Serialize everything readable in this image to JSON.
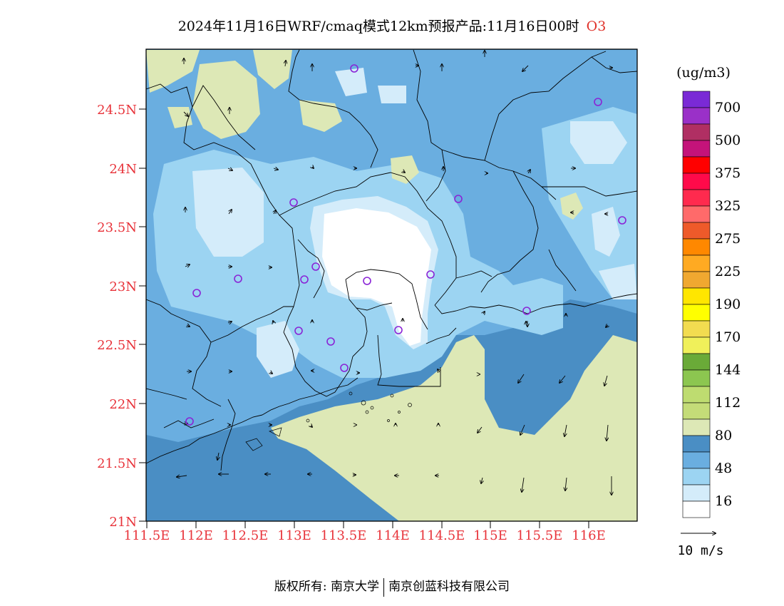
{
  "title": {
    "text": "2024年11月16日WRF/cmaq模式12km预报产品:11月16日00时",
    "species": "O3"
  },
  "axes": {
    "lat_ticks": [
      "24.5N",
      "24N",
      "23.5N",
      "23N",
      "22.5N",
      "22N",
      "21.5N",
      "21N"
    ],
    "lon_ticks": [
      "111.5E",
      "112E",
      "112.5E",
      "113E",
      "113.5E",
      "114E",
      "114.5E",
      "115E",
      "115.5E",
      "116E"
    ],
    "label_color": "#e8333a"
  },
  "legend": {
    "unit": "(ug/m3)",
    "levels": [
      {
        "label": "700",
        "color": "#7a2ad6"
      },
      {
        "label": "",
        "color": "#9a30c8"
      },
      {
        "label": "500",
        "color": "#b02f63"
      },
      {
        "label": "",
        "color": "#c4137a"
      },
      {
        "label": "375",
        "color": "#ff0000"
      },
      {
        "label": "",
        "color": "#ff0a4a"
      },
      {
        "label": "325",
        "color": "#ff2a4e"
      },
      {
        "label": "",
        "color": "#ff6a6a"
      },
      {
        "label": "275",
        "color": "#ee5a2a"
      },
      {
        "label": "",
        "color": "#ff8800"
      },
      {
        "label": "225",
        "color": "#ffaa22"
      },
      {
        "label": "",
        "color": "#f0a830"
      },
      {
        "label": "190",
        "color": "#ffe600"
      },
      {
        "label": "",
        "color": "#ffff00"
      },
      {
        "label": "170",
        "color": "#f2dc50"
      },
      {
        "label": "",
        "color": "#f0f05a"
      },
      {
        "label": "144",
        "color": "#6aaa38"
      },
      {
        "label": "",
        "color": "#8cc650"
      },
      {
        "label": "112",
        "color": "#bedc70"
      },
      {
        "label": "",
        "color": "#c4dc78"
      },
      {
        "label": "80",
        "color": "#dde8b6"
      },
      {
        "label": "",
        "color": "#4a8ec4"
      },
      {
        "label": "48",
        "color": "#6aaee0"
      },
      {
        "label": "",
        "color": "#9cd4f2"
      },
      {
        "label": "16",
        "color": "#d4ecfa"
      },
      {
        "label": "",
        "color": "#ffffff"
      }
    ]
  },
  "wind_scale": {
    "label": "10 m/s"
  },
  "footer": {
    "left": "版权所有: 南京大学",
    "right": "南京创蓝科技有限公司"
  }
}
